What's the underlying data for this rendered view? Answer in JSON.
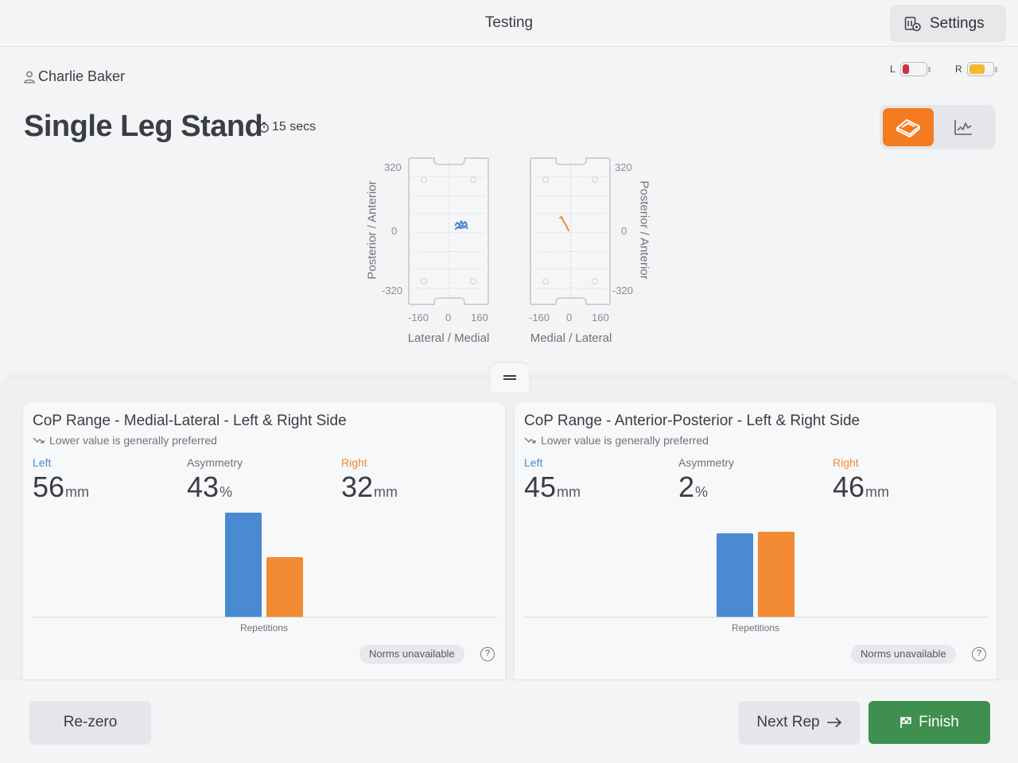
{
  "header": {
    "title": "Testing",
    "settings_label": "Settings"
  },
  "user": {
    "name": "Charlie Baker"
  },
  "batteries": [
    {
      "side": "L",
      "color": "#c8323c",
      "level": 0.3
    },
    {
      "side": "R",
      "color": "#f5b731",
      "level": 0.7
    }
  ],
  "test": {
    "name": "Single Leg Stand",
    "duration": "15 secs"
  },
  "view_toggle": {
    "active": "plate-view",
    "options": [
      "plate-view-icon",
      "graph-view-icon"
    ]
  },
  "plates": {
    "left": {
      "y_ticks": [
        "320",
        "0",
        "-320"
      ],
      "x_ticks": [
        "-160",
        "0",
        "160"
      ],
      "y_axis": "Posterior / Anterior",
      "x_axis": "Lateral / Medial",
      "trace_color": "#4a8ad0"
    },
    "right": {
      "y_ticks": [
        "320",
        "0",
        "-320"
      ],
      "x_ticks": [
        "-160",
        "0",
        "160"
      ],
      "y_axis": "Posterior / Anterior",
      "x_axis": "Medial / Lateral",
      "trace_color": "#f18a32"
    }
  },
  "colors": {
    "left": "#4a8ad0",
    "right": "#f18a32",
    "accent": "#f47b20",
    "finish": "#3f8f4e"
  },
  "cards": [
    {
      "title": "CoP Range - Medial-Lateral - Left & Right Side",
      "subtitle": "Lower value is generally preferred",
      "left_label": "Left",
      "left_value": "56",
      "left_unit": "mm",
      "asym_label": "Asymmetry",
      "asym_value": "43",
      "asym_unit": "%",
      "right_label": "Right",
      "right_value": "32",
      "right_unit": "mm",
      "xlabel": "Repetitions",
      "norms": "Norms unavailable",
      "help": "?"
    },
    {
      "title": "CoP Range - Anterior-Posterior - Left & Right Side",
      "subtitle": "Lower value is generally preferred",
      "left_label": "Left",
      "left_value": "45",
      "left_unit": "mm",
      "asym_label": "Asymmetry",
      "asym_value": "2",
      "asym_unit": "%",
      "right_label": "Right",
      "right_value": "46",
      "right_unit": "mm",
      "xlabel": "Repetitions",
      "norms": "Norms unavailable",
      "help": "?"
    }
  ],
  "chart_data": [
    {
      "type": "bar",
      "categories": [
        "Left",
        "Right"
      ],
      "values": [
        56,
        32
      ],
      "xlabel": "Repetitions",
      "ylim": [
        0,
        60
      ]
    },
    {
      "type": "bar",
      "categories": [
        "Left",
        "Right"
      ],
      "values": [
        45,
        46
      ],
      "xlabel": "Repetitions",
      "ylim": [
        0,
        60
      ]
    }
  ],
  "footer": {
    "rezero_label": "Re-zero",
    "next_label": "Next Rep",
    "finish_label": "Finish"
  }
}
